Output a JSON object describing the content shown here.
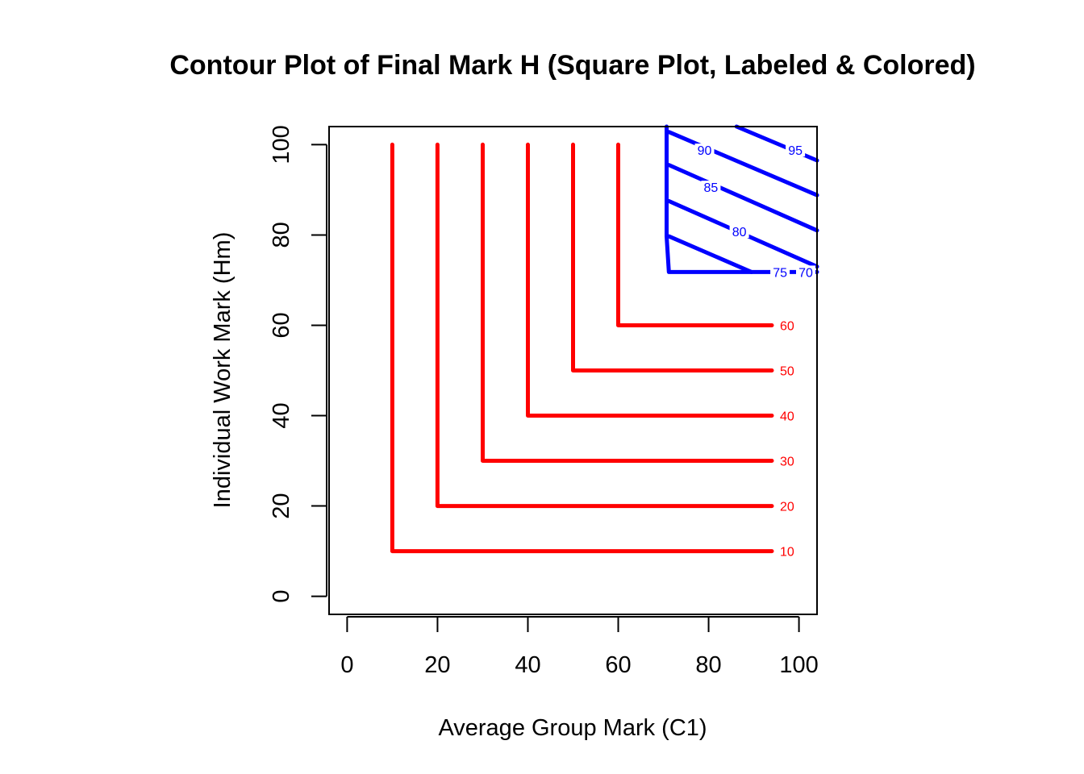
{
  "chart_data": {
    "type": "contour",
    "title": "Contour Plot of Final Mark H (Square Plot, Labeled & Colored)",
    "xlabel": "Average Group Mark (C1)",
    "ylabel": "Individual Work Mark (Hm)",
    "xlim": [
      -4,
      104
    ],
    "ylim": [
      -4,
      104
    ],
    "x_ticks": [
      0,
      20,
      40,
      60,
      80,
      100
    ],
    "y_ticks": [
      0,
      20,
      40,
      60,
      80,
      100
    ],
    "grid": false,
    "colors": {
      "low": "#ff0000",
      "high": "#0000ff"
    },
    "contours": [
      {
        "level": 10,
        "label": "10",
        "color": "#ff0000",
        "path": [
          [
            10,
            100
          ],
          [
            10,
            10
          ],
          [
            94,
            10
          ]
        ],
        "label_at": [
          94,
          10
        ]
      },
      {
        "level": 20,
        "label": "20",
        "color": "#ff0000",
        "path": [
          [
            20,
            100
          ],
          [
            20,
            20
          ],
          [
            94,
            20
          ]
        ],
        "label_at": [
          94,
          20
        ]
      },
      {
        "level": 30,
        "label": "30",
        "color": "#ff0000",
        "path": [
          [
            30,
            100
          ],
          [
            30,
            30
          ],
          [
            94,
            30
          ]
        ],
        "label_at": [
          94,
          30
        ]
      },
      {
        "level": 40,
        "label": "40",
        "color": "#ff0000",
        "path": [
          [
            40,
            100
          ],
          [
            40,
            40
          ],
          [
            94,
            40
          ]
        ],
        "label_at": [
          94,
          40
        ]
      },
      {
        "level": 50,
        "label": "50",
        "color": "#ff0000",
        "path": [
          [
            50,
            100
          ],
          [
            50,
            50
          ],
          [
            94,
            50
          ]
        ],
        "label_at": [
          94,
          50
        ]
      },
      {
        "level": 60,
        "label": "60",
        "color": "#ff0000",
        "path": [
          [
            60,
            100
          ],
          [
            60,
            60
          ],
          [
            94,
            60
          ]
        ],
        "label_at": [
          94,
          60
        ]
      },
      {
        "level": 70,
        "label": "70",
        "color": "#0000ff",
        "path": [
          [
            70.7,
            104
          ],
          [
            70.7,
            79.7
          ],
          [
            71.2,
            71.8
          ],
          [
            104,
            71.8
          ]
        ],
        "label_at": [
          101.5,
          71.8
        ]
      },
      {
        "level": 75,
        "label": "75",
        "color": "#0000ff",
        "path": [
          [
            71.2,
            79.7
          ],
          [
            89.5,
            71.8
          ]
        ],
        "label_at": [
          95.8,
          71.8
        ]
      },
      {
        "level": 80,
        "label": "80",
        "color": "#0000ff",
        "path": [
          [
            71.2,
            87.5
          ],
          [
            104,
            73
          ]
        ],
        "label_at": [
          86.8,
          80.8
        ]
      },
      {
        "level": 85,
        "label": "85",
        "color": "#0000ff",
        "path": [
          [
            71.2,
            95.5
          ],
          [
            104,
            81
          ]
        ],
        "label_at": [
          80.5,
          90.6
        ]
      },
      {
        "level": 90,
        "label": "90",
        "color": "#0000ff",
        "path": [
          [
            71.2,
            102.8
          ],
          [
            104,
            88.8
          ]
        ],
        "label_at": [
          79.1,
          98.8
        ]
      },
      {
        "level": 95,
        "label": "95",
        "color": "#0000ff",
        "path": [
          [
            86.2,
            104
          ],
          [
            104,
            96.5
          ]
        ],
        "label_at": [
          99.2,
          98.8
        ]
      }
    ]
  }
}
